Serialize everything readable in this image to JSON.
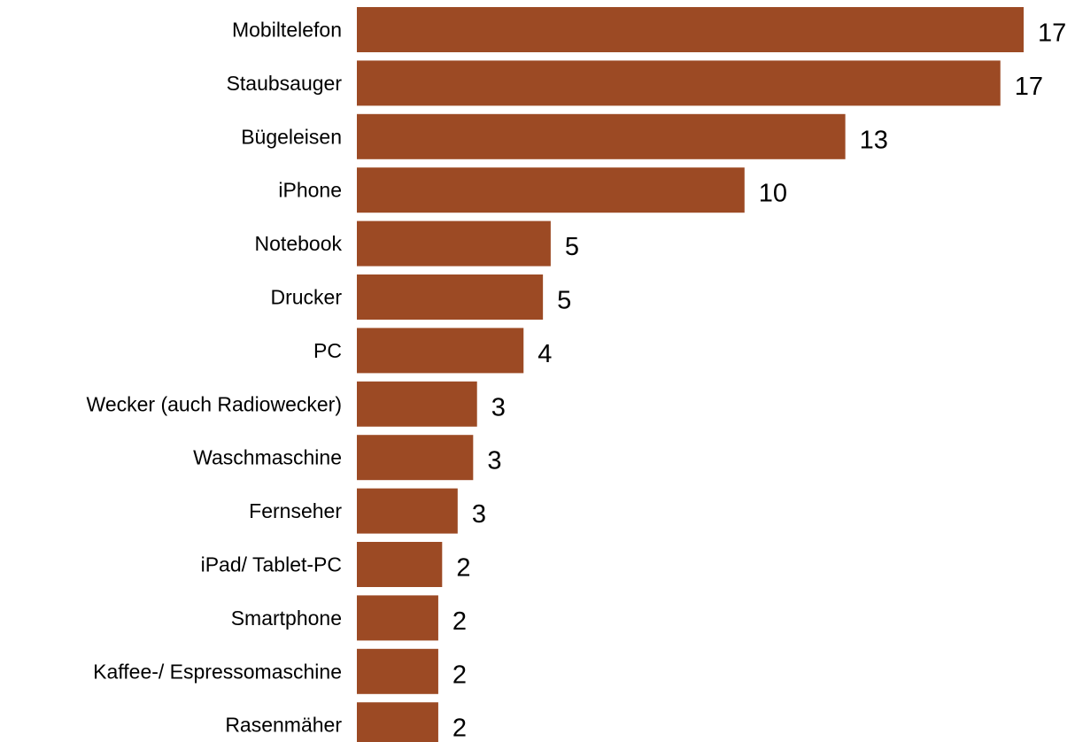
{
  "chart_data": {
    "type": "bar",
    "orientation": "horizontal",
    "categories": [
      "Mobiltelefon",
      "Staubsauger",
      "Bügeleisen",
      "iPhone",
      "Notebook",
      "Drucker",
      "PC",
      "Wecker (auch Radiowecker)",
      "Waschmaschine",
      "Fernseher",
      "iPad/ Tablet-PC",
      "Smartphone",
      "Kaffee-/ Espressomaschine",
      "Rasenmäher"
    ],
    "values": [
      17.2,
      16.6,
      12.6,
      10.0,
      5.0,
      4.8,
      4.3,
      3.1,
      3.0,
      2.6,
      2.2,
      2.1,
      2.1,
      2.1
    ],
    "value_labels": [
      "17",
      "17",
      "13",
      "10",
      "5",
      "5",
      "4",
      "3",
      "3",
      "3",
      "2",
      "2",
      "2",
      "2"
    ],
    "title": "",
    "xlabel": "",
    "ylabel": "",
    "xlim": [
      0,
      17.2
    ],
    "grid": false,
    "legend": "none",
    "bar_color": "#9C4A24"
  }
}
